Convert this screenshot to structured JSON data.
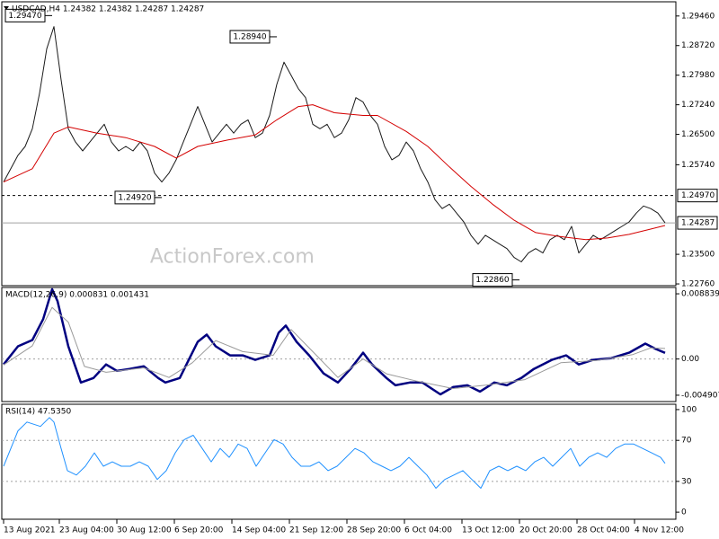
{
  "chart_data": [
    {
      "type": "line",
      "title": "USDCAD,H4  1.24382 1.24382 1.24287 1.24287",
      "watermark": "ActionForex.com",
      "xlim": [
        0,
        374
      ],
      "ylim": [
        1.22716,
        1.29815
      ],
      "yticks": [
        {
          "value": 1.2946,
          "label": "1.29460"
        },
        {
          "value": 1.2872,
          "label": "1.28720"
        },
        {
          "value": 1.2798,
          "label": "1.27980"
        },
        {
          "value": 1.2724,
          "label": "1.27240"
        },
        {
          "value": 1.265,
          "label": "1.26500"
        },
        {
          "value": 1.2574,
          "label": "1.25740"
        },
        {
          "value": 1.235,
          "label": "1.23500"
        },
        {
          "value": 1.2276,
          "label": "1.22760"
        }
      ],
      "x": [
        0,
        4,
        8,
        12,
        16,
        20,
        24,
        28,
        32,
        36,
        40,
        44,
        48,
        52,
        56,
        60,
        64,
        68,
        72,
        76,
        80,
        84,
        88,
        92,
        96,
        100,
        104,
        108,
        112,
        116,
        120,
        124,
        128,
        132,
        136,
        140,
        144,
        148,
        152,
        156,
        160,
        164,
        168,
        172,
        176,
        180,
        184,
        188,
        192,
        196,
        200,
        204,
        208,
        212,
        216,
        220,
        224,
        228,
        232,
        236,
        240,
        244,
        248,
        252,
        256,
        260,
        264,
        268,
        272,
        276,
        280,
        284,
        288,
        292,
        296,
        300,
        304,
        308,
        312,
        316,
        320,
        324,
        328,
        332,
        336,
        340,
        344,
        348,
        352,
        356,
        360,
        364,
        368
      ],
      "series": [
        {
          "color": "#1a1a1a",
          "values": [
            1.25309,
            1.25642,
            1.25975,
            1.26197,
            1.26641,
            1.27529,
            1.28639,
            1.29194,
            1.27862,
            1.26641,
            1.26308,
            1.26086,
            1.26308,
            1.2653,
            1.26752,
            1.26308,
            1.26086,
            1.26197,
            1.26086,
            1.26308,
            1.26086,
            1.25531,
            1.25309,
            1.25531,
            1.25864,
            1.26308,
            1.26752,
            1.27196,
            1.26752,
            1.26308,
            1.2653,
            1.26752,
            1.2653,
            1.26752,
            1.26863,
            1.26419,
            1.2653,
            1.26974,
            1.27751,
            1.28306,
            1.27973,
            1.2764,
            1.27418,
            1.26752,
            1.26641,
            1.26752,
            1.26419,
            1.2653,
            1.26863,
            1.27418,
            1.27307,
            1.26974,
            1.26752,
            1.26197,
            1.25864,
            1.25975,
            1.26308,
            1.26086,
            1.25642,
            1.25309,
            1.24865,
            1.24643,
            1.24754,
            1.24532,
            1.2431,
            1.23977,
            1.23755,
            1.23977,
            1.23866,
            1.23755,
            1.23644,
            1.23422,
            1.23311,
            1.23533,
            1.23644,
            1.23533,
            1.23866,
            1.23977,
            1.23866,
            1.24199,
            1.23533,
            1.23755,
            1.23977,
            1.23866,
            1.23977,
            1.24088,
            1.24199,
            1.2431,
            1.24532,
            1.24709,
            1.24643,
            1.24532,
            1.24287
          ]
        },
        {
          "color": "#d40000",
          "x": [
            0,
            16,
            28,
            36,
            52,
            68,
            84,
            96,
            108,
            124,
            140,
            152,
            164,
            172,
            184,
            200,
            208,
            224,
            236,
            248,
            260,
            272,
            284,
            296,
            308,
            324,
            336,
            348,
            360,
            368
          ],
          "values": [
            1.25309,
            1.25642,
            1.2653,
            1.26685,
            1.2653,
            1.26419,
            1.26197,
            1.25908,
            1.26197,
            1.26352,
            1.26486,
            1.26863,
            1.27196,
            1.2724,
            1.2704,
            1.26974,
            1.26974,
            1.26574,
            1.26197,
            1.25686,
            1.25198,
            1.24754,
            1.24354,
            1.24043,
            1.23954,
            1.23866,
            1.2391,
            1.23999,
            1.24132,
            1.24221
          ]
        }
      ],
      "levels": [
        {
          "value": 1.2497,
          "label": "1.24970",
          "style": "dashed"
        },
        {
          "value": 1.24287,
          "label": "1.24287",
          "style": "solid"
        }
      ],
      "annotations": [
        {
          "label": "1.29470",
          "value": 1.2947,
          "x": 27
        },
        {
          "label": "1.28940",
          "value": 1.2894,
          "x": 152
        },
        {
          "label": "1.24920",
          "value": 1.2492,
          "x": 88
        },
        {
          "label": "1.22860",
          "value": 1.2286,
          "x": 287
        }
      ]
    },
    {
      "type": "line",
      "title": "MACD(12,26,9) 0.000831 0.001431",
      "xlim": [
        0,
        374
      ],
      "ylim": [
        -0.005766,
        0.009698
      ],
      "yticks": [
        0.008839,
        {
          "value": 0,
          "label": "0.00"
        },
        -0.004907
      ],
      "dotted_levels": [
        0
      ],
      "series": [
        {
          "color": "#000080",
          "width": 2.5,
          "x": [
            0,
            8,
            16,
            22,
            27,
            30,
            36,
            43,
            50,
            57,
            63,
            70,
            78,
            86,
            90,
            98,
            103,
            108,
            113,
            118,
            126,
            133,
            140,
            148,
            153,
            157,
            163,
            170,
            178,
            186,
            193,
            200,
            205,
            213,
            218,
            226,
            233,
            243,
            250,
            258,
            265,
            273,
            280,
            288,
            295,
            305,
            313,
            320,
            328,
            338,
            348,
            357,
            363,
            368
          ],
          "values": [
            -0.00074,
            0.00172,
            0.00258,
            0.0054,
            0.00945,
            0.00785,
            0.00172,
            -0.00319,
            -0.00258,
            -0.00074,
            -0.0016,
            -0.00135,
            -0.00098,
            -0.00258,
            -0.00319,
            -0.00258,
            -0.00012,
            0.00233,
            0.00331,
            0.00172,
            0.00049,
            0.00049,
            -0.00012,
            0.00049,
            0.00356,
            0.00454,
            0.00233,
            0.00049,
            -0.00196,
            -0.00319,
            -0.00135,
            0.00086,
            -0.00074,
            -0.00258,
            -0.00356,
            -0.00319,
            -0.00319,
            -0.00479,
            -0.0038,
            -0.00356,
            -0.00442,
            -0.00319,
            -0.00356,
            -0.00258,
            -0.00135,
            -0.00012,
            0.00049,
            -0.00074,
            -0.00012,
            0.00012,
            0.00086,
            0.00209,
            0.00135,
            0.000831
          ]
        },
        {
          "color": "#9a9a9a",
          "width": 1,
          "x": [
            0,
            16,
            27,
            36,
            45,
            57,
            78,
            92,
            105,
            118,
            133,
            150,
            160,
            172,
            186,
            200,
            213,
            230,
            250,
            270,
            290,
            310,
            330,
            350,
            360,
            368
          ],
          "values": [
            -0.0008,
            0.0018,
            0.007,
            0.005,
            -0.001,
            -0.0018,
            -0.0012,
            -0.0025,
            -0.0005,
            0.0025,
            0.001,
            0.0005,
            0.004,
            0.001,
            -0.0025,
            0,
            -0.002,
            -0.003,
            -0.004,
            -0.0035,
            -0.0028,
            -0.0005,
            -0.0002,
            0.0006,
            0.0015,
            0.001431
          ]
        }
      ]
    },
    {
      "type": "line",
      "title": "RSI(14) 47.5350",
      "xlim": [
        0,
        374
      ],
      "ylim": [
        -6.9,
        105.2
      ],
      "yticks": [
        100,
        70,
        30,
        0
      ],
      "dotted_levels": [
        70,
        30
      ],
      "series": [
        {
          "color": "#1e90ff",
          "width": 1,
          "x": [
            0,
            8,
            13,
            20.5,
            25.5,
            28,
            32,
            35.5,
            40.5,
            45.5,
            50.5,
            55.5,
            60.5,
            65.5,
            70.5,
            75.5,
            80.5,
            85.5,
            90.5,
            95.5,
            100.5,
            105.5,
            110.5,
            115.5,
            120.5,
            125.5,
            130.5,
            135.5,
            140.5,
            145.5,
            150.5,
            155.5,
            160.5,
            165.5,
            170.5,
            175.5,
            180.5,
            185.5,
            190.5,
            195.5,
            200.5,
            205.5,
            210.5,
            215.5,
            220.5,
            225.5,
            230.5,
            235.5,
            240.5,
            245.5,
            250.5,
            255.5,
            260.5,
            265.5,
            270.5,
            275.5,
            280.5,
            285.5,
            290.5,
            295.5,
            300.5,
            305.5,
            310.5,
            315.5,
            320.5,
            325.5,
            330.5,
            335.5,
            340.5,
            345.5,
            350.5,
            355.5,
            360.5,
            365.5,
            368
          ],
          "values": [
            44.8,
            79.3,
            87.9,
            83.6,
            92.2,
            87.9,
            62.1,
            40.5,
            36.2,
            44.8,
            57.8,
            44.8,
            49.1,
            44.8,
            44.8,
            49.1,
            44.8,
            31.9,
            40.5,
            57.8,
            70.7,
            75.0,
            62.1,
            49.1,
            62.1,
            53.4,
            66.4,
            62.1,
            44.8,
            57.8,
            70.7,
            66.4,
            53.4,
            44.8,
            44.8,
            49.1,
            40.5,
            44.8,
            53.4,
            62.1,
            57.8,
            49.1,
            44.8,
            40.5,
            44.8,
            53.4,
            44.8,
            36.2,
            23.3,
            31.9,
            36.2,
            40.5,
            31.9,
            23.3,
            40.5,
            44.8,
            40.5,
            44.8,
            40.5,
            49.1,
            53.4,
            44.8,
            53.4,
            62.1,
            44.8,
            53.4,
            57.8,
            53.4,
            62.1,
            66.4,
            66.4,
            62.1,
            57.8,
            53.4,
            47.535
          ]
        }
      ],
      "xticks": [
        {
          "value": 0,
          "label": "13 Aug 2021"
        },
        {
          "value": 31,
          "label": "23 Aug 04:00"
        },
        {
          "value": 63,
          "label": "30 Aug 12:00"
        },
        {
          "value": 95,
          "label": "6 Sep 20:00"
        },
        {
          "value": 127,
          "label": "14 Sep 04:00"
        },
        {
          "value": 159,
          "label": "21 Sep 12:00"
        },
        {
          "value": 191,
          "label": "28 Sep 20:00"
        },
        {
          "value": 223,
          "label": "6 Oct 04:00"
        },
        {
          "value": 255,
          "label": "13 Oct 12:00"
        },
        {
          "value": 287,
          "label": "20 Oct 20:00"
        },
        {
          "value": 319,
          "label": "28 Oct 04:00"
        },
        {
          "value": 351,
          "label": "4 Nov 12:00"
        }
      ]
    }
  ]
}
